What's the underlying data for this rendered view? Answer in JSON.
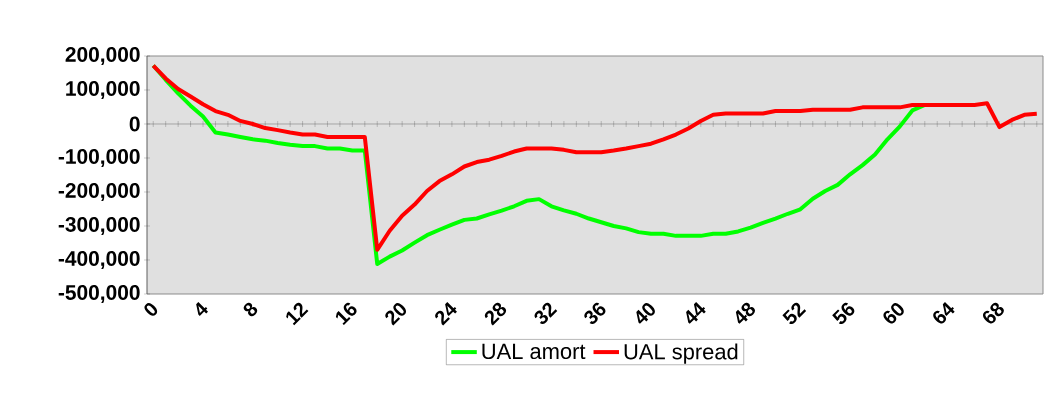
{
  "chart_data": {
    "type": "line",
    "categories": [
      "0",
      null,
      null,
      null,
      "4",
      null,
      null,
      null,
      "8",
      null,
      null,
      null,
      "12",
      null,
      null,
      null,
      "16",
      null,
      null,
      null,
      "20",
      null,
      null,
      null,
      "24",
      null,
      null,
      null,
      "28",
      null,
      null,
      null,
      "32",
      null,
      null,
      null,
      "36",
      null,
      null,
      null,
      "40",
      null,
      null,
      null,
      "44",
      null,
      null,
      null,
      "48",
      null,
      null,
      null,
      "52",
      null,
      null,
      null,
      "56",
      null,
      null,
      null,
      "60",
      null,
      null,
      null,
      "64",
      null,
      null,
      null,
      "68",
      null,
      null,
      null
    ],
    "series": [
      {
        "name": "UAL amort",
        "color": "#00ff00",
        "values": [
          172000,
          130000,
          90000,
          54000,
          22000,
          -25000,
          -31000,
          -38000,
          -45000,
          -49000,
          -56000,
          -61000,
          -65000,
          -65000,
          -72000,
          -72000,
          -78000,
          -78000,
          -412000,
          -390000,
          -372000,
          -349000,
          -327000,
          -311000,
          -296000,
          -282000,
          -278000,
          -266000,
          -255000,
          -242000,
          -226000,
          -221000,
          -242000,
          -254000,
          -264000,
          -278000,
          -289000,
          -300000,
          -307000,
          -318000,
          -323000,
          -323000,
          -329000,
          -329000,
          -329000,
          -323000,
          -323000,
          -316000,
          -305000,
          -291000,
          -278000,
          -264000,
          -251000,
          -220000,
          -197000,
          -179000,
          -148000,
          -121000,
          -90000,
          -45000,
          -7000,
          40000,
          56000,
          null,
          null,
          null,
          null,
          null,
          null,
          null,
          null,
          null
        ]
      },
      {
        "name": "UAL spread",
        "color": "#ff0000",
        "values": [
          172000,
          134000,
          103000,
          81000,
          58000,
          38000,
          27000,
          9000,
          0,
          -12000,
          -18000,
          -25000,
          -31000,
          -31000,
          -38000,
          -38000,
          -38000,
          -38000,
          -370000,
          -314000,
          -270000,
          -237000,
          -197000,
          -168000,
          -148000,
          -125000,
          -112000,
          -105000,
          -94000,
          -81000,
          -72000,
          -72000,
          -72000,
          -76000,
          -83000,
          -83000,
          -83000,
          -78000,
          -72000,
          -65000,
          -58000,
          -45000,
          -31000,
          -13000,
          9000,
          27000,
          31000,
          31000,
          31000,
          31000,
          38000,
          38000,
          38000,
          42000,
          42000,
          42000,
          42000,
          49000,
          49000,
          49000,
          49000,
          56000,
          56000,
          56000,
          56000,
          56000,
          56000,
          61000,
          -9000,
          12000,
          27000,
          30000
        ]
      }
    ],
    "ylim": [
      -500000,
      200000
    ],
    "yticks": [
      {
        "value": 200000,
        "label": "200,000"
      },
      {
        "value": 100000,
        "label": "100,000"
      },
      {
        "value": 0,
        "label": "0"
      },
      {
        "value": -100000,
        "label": "-100,000"
      },
      {
        "value": -200000,
        "label": "-200,000"
      },
      {
        "value": -300000,
        "label": "-300,000"
      },
      {
        "value": -400000,
        "label": "-400,000"
      },
      {
        "value": -500000,
        "label": "-500,000"
      }
    ],
    "legend": "bottom"
  }
}
